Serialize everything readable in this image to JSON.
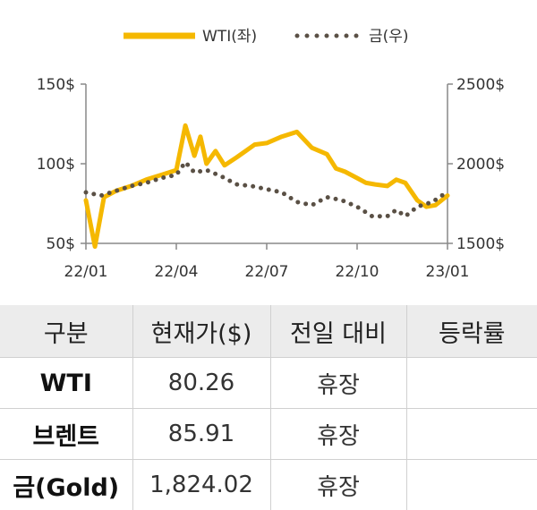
{
  "chart_data": {
    "type": "line",
    "legend": {
      "placement": "top-center"
    },
    "x_ticks": [
      "22/01",
      "22/04",
      "22/07",
      "22/10",
      "23/01"
    ],
    "y_left": {
      "ticks": [
        "150$",
        "100$",
        "50$"
      ],
      "ylim": [
        50,
        150
      ]
    },
    "y_right": {
      "ticks": [
        "2500$",
        "2000$",
        "1500$"
      ],
      "ylim": [
        1500,
        2500
      ]
    },
    "grid": false,
    "series": [
      {
        "name": "WTI(좌)",
        "axis": "left",
        "color": "#f5b800",
        "style": "solid",
        "x": [
          0,
          0.3,
          0.6,
          1,
          1.5,
          2,
          2.5,
          3,
          3.3,
          3.6,
          3.8,
          4,
          4.3,
          4.6,
          5,
          5.3,
          5.6,
          6,
          6.5,
          7,
          7.5,
          8,
          8.3,
          8.6,
          9,
          9.3,
          9.6,
          10,
          10.3,
          10.6,
          11,
          11.3,
          11.6,
          12
        ],
        "y": [
          77,
          48,
          79,
          83,
          86,
          90,
          93,
          96,
          124,
          105,
          117,
          100,
          108,
          99,
          104,
          108,
          112,
          113,
          117,
          120,
          110,
          106,
          97,
          95,
          91,
          88,
          87,
          86,
          90,
          88,
          77,
          73,
          74,
          80
        ]
      },
      {
        "name": "금(우)",
        "axis": "right",
        "color": "#5a5045",
        "style": "dotted",
        "x": [
          0,
          0.5,
          1,
          1.5,
          2,
          2.5,
          3,
          3.3,
          3.6,
          4,
          4.5,
          5,
          5.5,
          6,
          6.5,
          7,
          7.5,
          8,
          8.5,
          9,
          9.5,
          10,
          10.3,
          10.6,
          11,
          11.5,
          12
        ],
        "y": [
          1820,
          1800,
          1830,
          1860,
          1880,
          1910,
          1930,
          2010,
          1945,
          1960,
          1920,
          1870,
          1860,
          1840,
          1820,
          1760,
          1740,
          1790,
          1770,
          1730,
          1670,
          1670,
          1710,
          1670,
          1730,
          1760,
          1824
        ]
      }
    ]
  },
  "table": {
    "headers": [
      "구분",
      "현재가($)",
      "전일 대비",
      "등락률"
    ],
    "rows": [
      [
        "WTI",
        "80.26",
        "휴장",
        ""
      ],
      [
        "브렌트",
        "85.91",
        "휴장",
        ""
      ],
      [
        "금(Gold)",
        "1,824.02",
        "휴장",
        ""
      ]
    ]
  }
}
